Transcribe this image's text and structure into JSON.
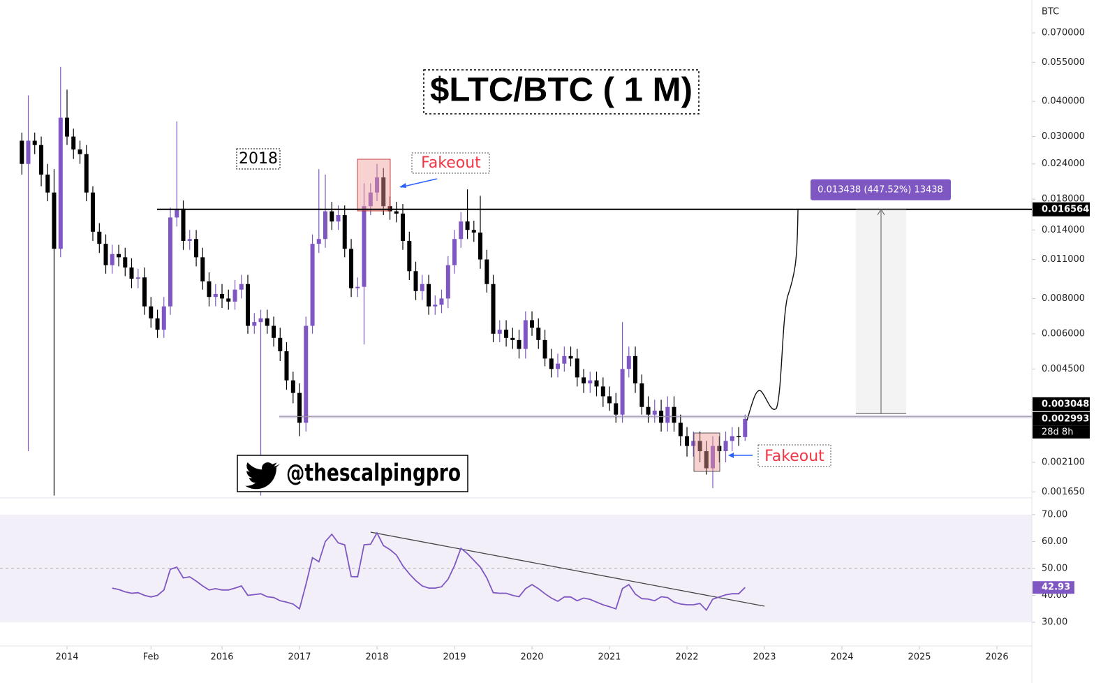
{
  "chart_data": [
    {
      "type": "candlestick",
      "title": "$LTC/BTC ( 1 M)",
      "unit": "BTC",
      "log_scale": true,
      "up_color": "#7e57c2",
      "down_color": "#000000",
      "x": [
        2013.417,
        2013.5,
        2013.583,
        2013.667,
        2013.75,
        2013.833,
        2013.917,
        2014,
        2014.083,
        2014.167,
        2014.25,
        2014.333,
        2014.417,
        2014.5,
        2014.583,
        2014.667,
        2014.75,
        2014.833,
        2014.917,
        2015,
        2015.083,
        2015.167,
        2015.25,
        2015.333,
        2015.417,
        2015.5,
        2015.583,
        2015.667,
        2015.75,
        2015.833,
        2015.917,
        2016,
        2016.083,
        2016.167,
        2016.25,
        2016.333,
        2016.417,
        2016.5,
        2016.583,
        2016.667,
        2016.75,
        2016.833,
        2016.917,
        2017,
        2017.083,
        2017.167,
        2017.25,
        2017.333,
        2017.417,
        2017.5,
        2017.583,
        2017.667,
        2017.75,
        2017.833,
        2017.917,
        2018,
        2018.083,
        2018.167,
        2018.25,
        2018.333,
        2018.417,
        2018.5,
        2018.583,
        2018.667,
        2018.75,
        2018.833,
        2018.917,
        2019,
        2019.083,
        2019.167,
        2019.25,
        2019.333,
        2019.417,
        2019.5,
        2019.583,
        2019.667,
        2019.75,
        2019.833,
        2019.917,
        2020,
        2020.083,
        2020.167,
        2020.25,
        2020.333,
        2020.417,
        2020.5,
        2020.583,
        2020.667,
        2020.75,
        2020.833,
        2020.917,
        2021,
        2021.083,
        2021.167,
        2021.25,
        2021.333,
        2021.417,
        2021.5,
        2021.583,
        2021.667,
        2021.75,
        2021.833,
        2021.917,
        2022,
        2022.083,
        2022.167,
        2022.25,
        2022.333,
        2022.417,
        2022.5,
        2022.583,
        2022.667,
        2022.75
      ],
      "open": [
        0.029,
        0.024,
        0.029,
        0.028,
        0.022,
        0.019,
        0.012,
        0.035,
        0.03,
        0.027,
        0.026,
        0.019,
        0.0138,
        0.0125,
        0.0105,
        0.0115,
        0.0112,
        0.0103,
        0.0094,
        0.0095,
        0.0075,
        0.0068,
        0.0062,
        0.0075,
        0.0155,
        0.0165,
        0.0128,
        0.013,
        0.0112,
        0.0092,
        0.0081,
        0.0083,
        0.008,
        0.0078,
        0.0086,
        0.009,
        0.0064,
        0.0066,
        0.0068,
        0.0064,
        0.0058,
        0.0052,
        0.0041,
        0.0037,
        0.0029,
        0.0064,
        0.0125,
        0.013,
        0.0163,
        0.015,
        0.0158,
        0.012,
        0.0087,
        0.0088,
        0.017,
        0.019,
        0.0215,
        0.017,
        0.0163,
        0.016,
        0.0128,
        0.01,
        0.0085,
        0.009,
        0.0075,
        0.0076,
        0.008,
        0.0105,
        0.013,
        0.015,
        0.014,
        0.0137,
        0.011,
        0.009,
        0.006,
        0.0062,
        0.0058,
        0.0057,
        0.0053,
        0.0067,
        0.0063,
        0.0057,
        0.0049,
        0.0045,
        0.0047,
        0.005,
        0.0049,
        0.0042,
        0.004,
        0.0041,
        0.0039,
        0.0036,
        0.0034,
        0.0031,
        0.0045,
        0.005,
        0.004,
        0.0033,
        0.0031,
        0.0032,
        0.0029,
        0.0033,
        0.0029,
        0.0026,
        0.0024,
        0.0025,
        0.0023,
        0.002,
        0.0024,
        0.0023,
        0.0025,
        0.0026,
        0.00258
      ],
      "high": [
        0.031,
        0.042,
        0.031,
        0.03,
        0.024,
        0.023,
        0.053,
        0.044,
        0.032,
        0.029,
        0.028,
        0.02,
        0.0148,
        0.0135,
        0.0124,
        0.0124,
        0.0121,
        0.0111,
        0.0102,
        0.0103,
        0.0081,
        0.0073,
        0.0081,
        0.0168,
        0.034,
        0.0178,
        0.014,
        0.014,
        0.0121,
        0.0099,
        0.009,
        0.009,
        0.0086,
        0.0093,
        0.0097,
        0.0097,
        0.0071,
        0.0073,
        0.0073,
        0.0069,
        0.0063,
        0.0056,
        0.0044,
        0.004,
        0.0069,
        0.0135,
        0.023,
        0.022,
        0.0176,
        0.0171,
        0.0171,
        0.013,
        0.0095,
        0.0205,
        0.0205,
        0.024,
        0.0232,
        0.0184,
        0.0176,
        0.0173,
        0.0138,
        0.0108,
        0.0097,
        0.0097,
        0.0082,
        0.0086,
        0.0113,
        0.014,
        0.0162,
        0.0195,
        0.0151,
        0.0185,
        0.0119,
        0.0097,
        0.0067,
        0.0067,
        0.0063,
        0.0062,
        0.0072,
        0.0072,
        0.0068,
        0.0062,
        0.0053,
        0.0051,
        0.0054,
        0.0054,
        0.0053,
        0.0045,
        0.0044,
        0.0044,
        0.0042,
        0.0039,
        0.0037,
        0.0066,
        0.0054,
        0.0054,
        0.0043,
        0.0036,
        0.0035,
        0.0035,
        0.0036,
        0.0036,
        0.0031,
        0.0028,
        0.0027,
        0.0027,
        0.0025,
        0.0026,
        0.0026,
        0.0027,
        0.0028,
        0.0028,
        0.0031
      ],
      "low": [
        0.022,
        0.0023,
        0.026,
        0.02,
        0.0177,
        0.0016,
        0.0112,
        0.028,
        0.025,
        0.024,
        0.0177,
        0.0128,
        0.0116,
        0.0098,
        0.0098,
        0.0104,
        0.0096,
        0.0087,
        0.0087,
        0.007,
        0.0063,
        0.0058,
        0.0058,
        0.007,
        0.0144,
        0.0119,
        0.0119,
        0.0104,
        0.0086,
        0.0075,
        0.0075,
        0.0074,
        0.0073,
        0.0073,
        0.008,
        0.006,
        0.006,
        0.0016,
        0.006,
        0.0054,
        0.0048,
        0.0038,
        0.0034,
        0.0026,
        0.0027,
        0.006,
        0.0116,
        0.0121,
        0.014,
        0.014,
        0.0112,
        0.0081,
        0.0081,
        0.0055,
        0.0158,
        0.0177,
        0.0158,
        0.0152,
        0.0149,
        0.0119,
        0.0093,
        0.0079,
        0.0079,
        0.007,
        0.007,
        0.0071,
        0.0074,
        0.0098,
        0.0121,
        0.013,
        0.0127,
        0.0102,
        0.0084,
        0.0056,
        0.0056,
        0.0054,
        0.0053,
        0.0049,
        0.0049,
        0.0059,
        0.0053,
        0.0046,
        0.0042,
        0.0042,
        0.0044,
        0.0046,
        0.0039,
        0.0037,
        0.0037,
        0.0036,
        0.0033,
        0.0032,
        0.0029,
        0.0029,
        0.0042,
        0.0037,
        0.0031,
        0.0029,
        0.0029,
        0.0027,
        0.0027,
        0.0027,
        0.0024,
        0.0022,
        0.0022,
        0.0021,
        0.0019,
        0.0017,
        0.0021,
        0.0021,
        0.0023,
        0.0024,
        0.0025
      ],
      "close": [
        0.024,
        0.029,
        0.028,
        0.022,
        0.019,
        0.012,
        0.035,
        0.03,
        0.027,
        0.026,
        0.019,
        0.0138,
        0.0125,
        0.0105,
        0.0115,
        0.0112,
        0.0103,
        0.0094,
        0.0095,
        0.0075,
        0.0068,
        0.0062,
        0.0075,
        0.0155,
        0.0165,
        0.0128,
        0.013,
        0.0112,
        0.0092,
        0.0081,
        0.0083,
        0.008,
        0.0078,
        0.0086,
        0.009,
        0.0064,
        0.0066,
        0.0068,
        0.0064,
        0.0058,
        0.0052,
        0.0041,
        0.0037,
        0.0029,
        0.0064,
        0.0125,
        0.013,
        0.0163,
        0.015,
        0.0158,
        0.012,
        0.0087,
        0.0088,
        0.017,
        0.019,
        0.0215,
        0.017,
        0.0163,
        0.016,
        0.0128,
        0.01,
        0.0085,
        0.009,
        0.0075,
        0.0076,
        0.008,
        0.0105,
        0.013,
        0.015,
        0.014,
        0.0137,
        0.011,
        0.009,
        0.006,
        0.0062,
        0.0058,
        0.0057,
        0.0053,
        0.0067,
        0.0063,
        0.0057,
        0.0049,
        0.0045,
        0.0047,
        0.005,
        0.0049,
        0.0042,
        0.004,
        0.0041,
        0.0039,
        0.0036,
        0.0034,
        0.0031,
        0.0045,
        0.005,
        0.004,
        0.0033,
        0.0031,
        0.0032,
        0.0029,
        0.0033,
        0.0029,
        0.0026,
        0.0024,
        0.0025,
        0.0023,
        0.002,
        0.0024,
        0.0023,
        0.0025,
        0.0026,
        0.00258,
        0.002993
      ],
      "xlim": [
        2013.135,
        2026.45
      ],
      "ylim": [
        0.00157,
        0.0915
      ],
      "yticks": [
        {
          "value": 0.07,
          "label": "0.070000"
        },
        {
          "value": 0.055,
          "label": "0.055000"
        },
        {
          "value": 0.04,
          "label": "0.040000"
        },
        {
          "value": 0.03,
          "label": "0.030000"
        },
        {
          "value": 0.024,
          "label": "0.024000"
        },
        {
          "value": 0.018,
          "label": "0.018000"
        },
        {
          "value": 0.014,
          "label": "0.014000"
        },
        {
          "value": 0.011,
          "label": "0.011000"
        },
        {
          "value": 0.008,
          "label": "0.008000"
        },
        {
          "value": 0.006,
          "label": "0.006000"
        },
        {
          "value": 0.0045,
          "label": "0.004500"
        },
        {
          "value": 0.0021,
          "label": "0.002100"
        },
        {
          "value": 0.00165,
          "label": "0.001650"
        }
      ],
      "grid": false,
      "resistance": 0.016564,
      "support": 0.003048,
      "countdown": "28d 8h",
      "measure": {
        "from": 0.003126,
        "to": 0.016564,
        "label": "0.013438 (447.52%) 13438"
      },
      "annotations": [
        "2018",
        "Fakeout",
        "Fakeout",
        "@thescalpingpro"
      ]
    },
    {
      "type": "line",
      "color": "#7e57c2",
      "x": [
        2014.583,
        2014.667,
        2014.75,
        2014.833,
        2014.917,
        2015,
        2015.083,
        2015.167,
        2015.25,
        2015.333,
        2015.417,
        2015.5,
        2015.583,
        2015.667,
        2015.75,
        2015.833,
        2015.917,
        2016,
        2016.083,
        2016.167,
        2016.25,
        2016.333,
        2016.417,
        2016.5,
        2016.583,
        2016.667,
        2016.75,
        2016.833,
        2016.917,
        2017,
        2017.083,
        2017.167,
        2017.25,
        2017.333,
        2017.417,
        2017.5,
        2017.583,
        2017.667,
        2017.75,
        2017.833,
        2017.917,
        2018,
        2018.083,
        2018.167,
        2018.25,
        2018.333,
        2018.417,
        2018.5,
        2018.583,
        2018.667,
        2018.75,
        2018.833,
        2018.917,
        2019,
        2019.083,
        2019.167,
        2019.25,
        2019.333,
        2019.417,
        2019.5,
        2019.583,
        2019.667,
        2019.75,
        2019.833,
        2019.917,
        2020,
        2020.083,
        2020.167,
        2020.25,
        2020.333,
        2020.417,
        2020.5,
        2020.583,
        2020.667,
        2020.75,
        2020.833,
        2020.917,
        2021,
        2021.083,
        2021.167,
        2021.25,
        2021.333,
        2021.417,
        2021.5,
        2021.583,
        2021.667,
        2021.75,
        2021.833,
        2021.917,
        2022,
        2022.083,
        2022.167,
        2022.25,
        2022.333,
        2022.417,
        2022.5,
        2022.583,
        2022.667,
        2022.75
      ],
      "values": [
        42.7,
        42.2,
        41.3,
        40.8,
        41,
        40,
        39.4,
        40,
        42,
        49.7,
        50.5,
        46.5,
        46.9,
        45.3,
        43.5,
        42,
        42.5,
        42,
        42,
        42.7,
        43.5,
        40,
        40.3,
        40.6,
        39.5,
        39.2,
        38,
        37.5,
        36.8,
        35,
        44,
        54,
        52.5,
        60,
        62.7,
        59.5,
        58.8,
        47,
        46.9,
        58.8,
        59,
        63.2,
        58.5,
        57,
        55,
        51,
        48,
        45.5,
        43.5,
        42.7,
        42.7,
        43.2,
        46,
        51,
        57.5,
        55.5,
        53,
        50.5,
        46.5,
        41,
        40.8,
        40.8,
        40,
        39.5,
        42.5,
        44,
        42.5,
        40.6,
        39,
        37.8,
        39.4,
        39.4,
        38,
        39,
        38.5,
        37.5,
        36.5,
        35.8,
        35,
        42.5,
        44,
        40.5,
        38.8,
        38.6,
        38,
        39.5,
        39.2,
        37.5,
        36.8,
        36.5,
        36.5,
        37,
        34.5,
        38.6,
        39.4,
        40.2,
        40.6,
        40.6,
        42.93
      ],
      "xlim": [
        2013.135,
        2026.45
      ],
      "ylim": [
        21.2,
        76.2
      ],
      "yticks": [
        {
          "value": 70,
          "label": "70.00"
        },
        {
          "value": 60,
          "label": "60.00"
        },
        {
          "value": 50,
          "label": "50.00"
        },
        {
          "value": 40,
          "label": "40.00"
        },
        {
          "value": 30,
          "label": "30.00"
        }
      ],
      "xticks": [
        2014,
        {
          "value": 2015.083,
          "label": "Feb"
        },
        2016,
        2017,
        2018,
        2019,
        2020,
        2021,
        2022,
        2023,
        2024,
        2025,
        2026
      ],
      "band": [
        30,
        70
      ],
      "midline": 50,
      "trendline": {
        "x": [
          2017.917,
          2023
        ],
        "values": [
          63.5,
          36
        ]
      }
    }
  ]
}
